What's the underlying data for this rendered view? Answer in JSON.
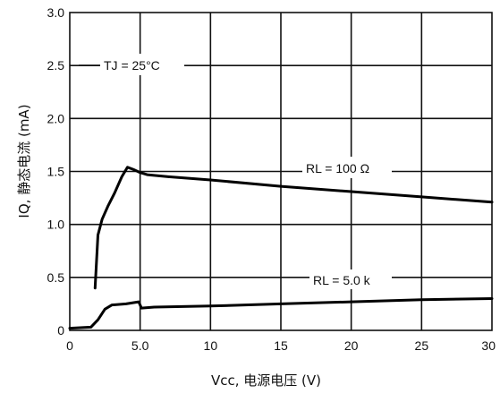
{
  "chart_data": {
    "type": "line",
    "xlabel": "Vcc, 电源电压 (V)",
    "ylabel": "IQ, 静态电流 (mA)",
    "xlim": [
      0,
      30
    ],
    "ylim": [
      0,
      3.0
    ],
    "x_ticks": [
      "0",
      "5.0",
      "10",
      "15",
      "20",
      "25",
      "30"
    ],
    "x_tick_values": [
      0,
      5,
      10,
      15,
      20,
      25,
      30
    ],
    "y_ticks": [
      "0",
      "0.5",
      "1.0",
      "1.5",
      "2.0",
      "2.5",
      "3.0"
    ],
    "y_tick_values": [
      0,
      0.5,
      1.0,
      1.5,
      2.0,
      2.5,
      3.0
    ],
    "grid": true,
    "annotations": [
      {
        "text": "TJ = 25°C"
      },
      {
        "text": "RL = 100 Ω"
      },
      {
        "text": "RL = 5.0 k"
      }
    ],
    "series": [
      {
        "name": "RL = 100 Ω",
        "x": [
          1.8,
          2.0,
          2.3,
          2.7,
          3.2,
          3.7,
          4.1,
          4.5,
          5.0,
          5.5,
          7,
          10,
          15,
          20,
          25,
          30
        ],
        "y": [
          0.4,
          0.9,
          1.05,
          1.17,
          1.3,
          1.45,
          1.54,
          1.52,
          1.49,
          1.47,
          1.45,
          1.42,
          1.36,
          1.31,
          1.26,
          1.21
        ]
      },
      {
        "name": "RL = 5.0 k",
        "x": [
          0,
          1.5,
          2.0,
          2.5,
          3.0,
          4.0,
          4.9,
          5.1,
          6,
          10,
          15,
          20,
          25,
          30
        ],
        "y": [
          0.02,
          0.03,
          0.1,
          0.2,
          0.24,
          0.25,
          0.27,
          0.21,
          0.22,
          0.23,
          0.25,
          0.27,
          0.29,
          0.3
        ]
      }
    ]
  }
}
